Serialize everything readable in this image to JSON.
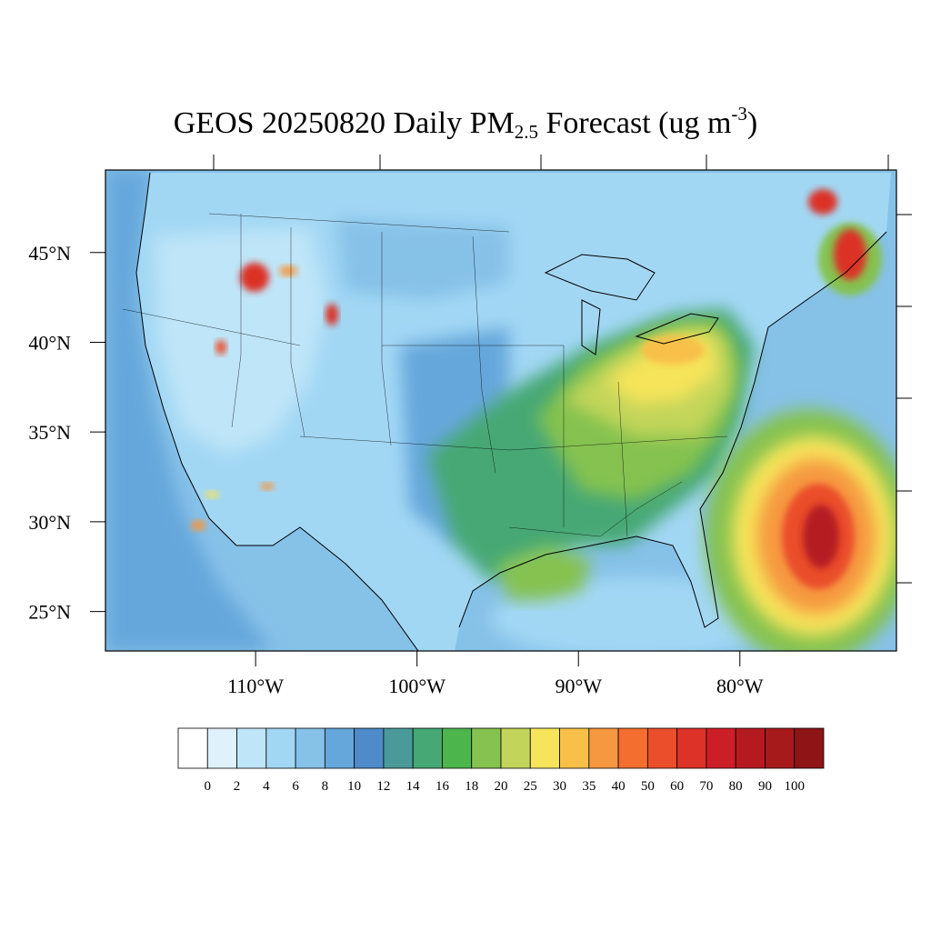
{
  "title": {
    "prefix": "GEOS 20250820 Daily PM",
    "subscript": "2.5",
    "middle": " Forecast (ug m",
    "superscript": "-3",
    "suffix": ")"
  },
  "axes": {
    "lat_labels": [
      "45°N",
      "40°N",
      "35°N",
      "30°N",
      "25°N"
    ],
    "lat_values": [
      45,
      40,
      35,
      30,
      25
    ],
    "lon_labels": [
      "110°W",
      "100°W",
      "90°W",
      "80°W"
    ],
    "lon_values": [
      -110,
      -100,
      -90,
      -80
    ],
    "lon_range": [
      -119.3,
      -70.3
    ],
    "lat_range": [
      22.8,
      49.6
    ]
  },
  "colorbar": {
    "labels": [
      "0",
      "2",
      "4",
      "6",
      "8",
      "10",
      "12",
      "14",
      "16",
      "18",
      "20",
      "25",
      "30",
      "35",
      "40",
      "50",
      "60",
      "70",
      "80",
      "90",
      "100"
    ],
    "colors": [
      "#ffffff",
      "#dff1fb",
      "#bfe5f8",
      "#a2d7f4",
      "#86c1e8",
      "#66a7db",
      "#4e8bc8",
      "#4a9a9a",
      "#46a874",
      "#4cb54c",
      "#85c250",
      "#c2d55a",
      "#f6e45a",
      "#f8c048",
      "#f69840",
      "#f46e30",
      "#ea4e2a",
      "#dc3228",
      "#cc1e28",
      "#b51a20",
      "#a61a1c",
      "#8e1416"
    ]
  },
  "colors": {
    "ocean": "#86c1e8",
    "land_base": "#a2d7f4",
    "coast_line": "#000000"
  }
}
